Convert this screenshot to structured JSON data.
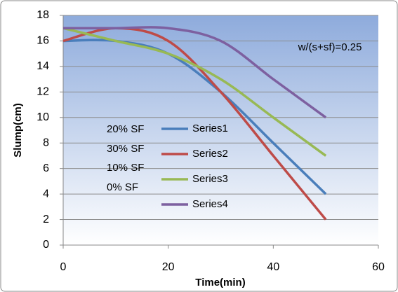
{
  "chart_data": {
    "type": "line",
    "x_label": "Time(min)",
    "y_label": "Slump(cm)",
    "x": [
      0,
      10,
      20,
      30,
      40,
      50
    ],
    "series": [
      {
        "name": "Series1",
        "color": "#4a7ebb",
        "values": [
          16,
          16,
          15,
          12,
          8,
          4
        ]
      },
      {
        "name": "Series2",
        "color": "#be4b48",
        "values": [
          16,
          17,
          16,
          12,
          7,
          2
        ]
      },
      {
        "name": "Series3",
        "color": "#98b954",
        "values": [
          17,
          16,
          15,
          13,
          10,
          7
        ]
      },
      {
        "name": "Series4",
        "color": "#7d60a0",
        "values": [
          17,
          17,
          17,
          16,
          13,
          10
        ]
      }
    ],
    "annotations": [
      "w/(s+sf)=0.25",
      "20% SF",
      "30% SF",
      "10% SF",
      "0% SF"
    ],
    "xlim": [
      0,
      60
    ],
    "xticks": [
      0,
      20,
      40,
      60
    ],
    "ylim": [
      0,
      18
    ],
    "yticks": [
      0,
      2,
      4,
      6,
      8,
      10,
      12,
      14,
      16,
      18
    ],
    "grid": true
  }
}
